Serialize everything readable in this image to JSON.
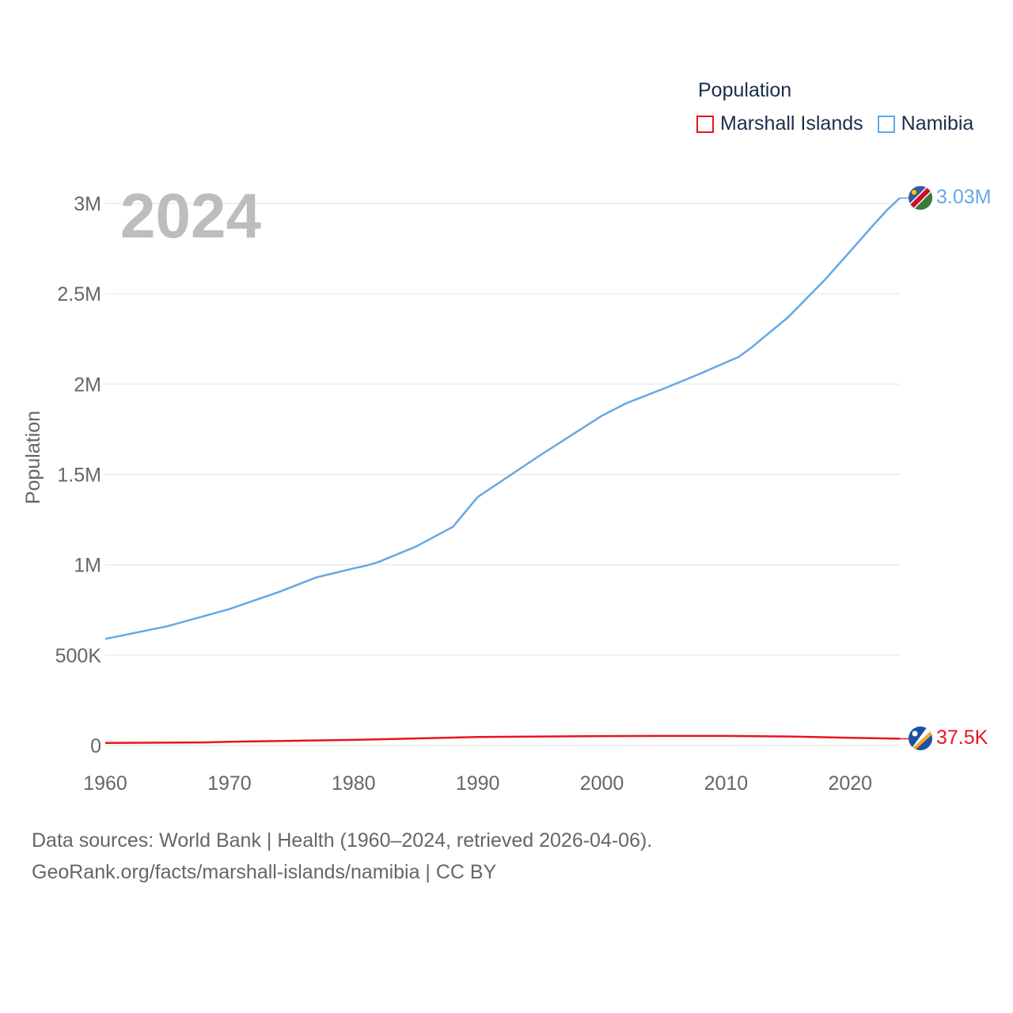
{
  "legend": {
    "title": "Population",
    "items": [
      {
        "name": "Marshall Islands",
        "color": "#e8141e"
      },
      {
        "name": "Namibia",
        "color": "#64a8e6"
      }
    ]
  },
  "footer": {
    "line1": "Data sources: World Bank | Health (1960–2024, retrieved 2026-04-06).",
    "line2": "GeoRank.org/facts/marshall-islands/namibia | CC BY"
  },
  "chart_data": {
    "type": "line",
    "title": "",
    "year_label": "2024",
    "xlabel": "",
    "ylabel": "Population",
    "xlim": [
      1960,
      2024
    ],
    "ylim": [
      0,
      3000000
    ],
    "x_ticks": [
      1960,
      1970,
      1980,
      1990,
      2000,
      2010,
      2020
    ],
    "y_ticks": [
      0,
      500000,
      1000000,
      1500000,
      2000000,
      2500000,
      3000000
    ],
    "y_tick_labels": [
      "0",
      "500K",
      "1M",
      "1.5M",
      "2M",
      "2.5M",
      "3M"
    ],
    "grid": true,
    "legend_position": "top-right",
    "series": [
      {
        "name": "Namibia",
        "color": "#64a8e6",
        "end_label": "3.03M",
        "flag_icon": "namibia-flag-icon",
        "points": [
          [
            1960,
            590000
          ],
          [
            1965,
            660000
          ],
          [
            1970,
            755000
          ],
          [
            1974,
            850000
          ],
          [
            1977,
            930000
          ],
          [
            1980,
            980000
          ],
          [
            1981,
            995000
          ],
          [
            1982,
            1015000
          ],
          [
            1985,
            1100000
          ],
          [
            1988,
            1210000
          ],
          [
            1990,
            1375000
          ],
          [
            1995,
            1605000
          ],
          [
            2000,
            1825000
          ],
          [
            2002,
            1895000
          ],
          [
            2005,
            1975000
          ],
          [
            2008,
            2060000
          ],
          [
            2011,
            2150000
          ],
          [
            2012,
            2200000
          ],
          [
            2015,
            2370000
          ],
          [
            2018,
            2580000
          ],
          [
            2020,
            2735000
          ],
          [
            2022,
            2890000
          ],
          [
            2023,
            2965000
          ],
          [
            2024,
            3030000
          ]
        ]
      },
      {
        "name": "Marshall Islands",
        "color": "#e8141e",
        "end_label": "37.5K",
        "flag_icon": "marshall-islands-flag-icon",
        "points": [
          [
            1960,
            14000
          ],
          [
            1968,
            17000
          ],
          [
            1970,
            21000
          ],
          [
            1980,
            31000
          ],
          [
            1990,
            47000
          ],
          [
            2000,
            52000
          ],
          [
            2005,
            53000
          ],
          [
            2010,
            53000
          ],
          [
            2015,
            50000
          ],
          [
            2020,
            43000
          ],
          [
            2024,
            37500
          ]
        ]
      }
    ]
  }
}
